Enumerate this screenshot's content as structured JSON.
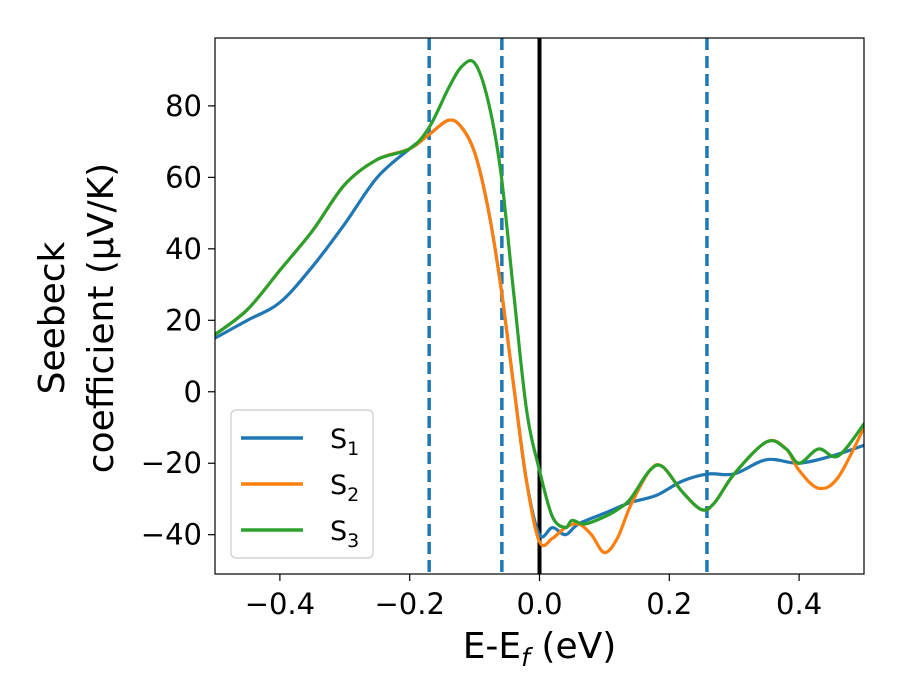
{
  "chart_data": {
    "type": "line",
    "title": "",
    "xlabel": {
      "main": "E-E",
      "sub": "f",
      "unit": " (eV)"
    },
    "ylabel": {
      "line1": "Seebeck",
      "line2": "coefficient  (μV/K)"
    },
    "xlim": [
      -0.5,
      0.5
    ],
    "ylim": [
      -51,
      99
    ],
    "x_ticks": [
      -0.4,
      -0.2,
      0.0,
      0.2,
      0.4
    ],
    "x_tick_labels": [
      "−0.4",
      "−0.2",
      "0.0",
      "0.2",
      "0.4"
    ],
    "y_ticks": [
      -40,
      -20,
      0,
      20,
      40,
      60,
      80
    ],
    "y_tick_labels": [
      "−40",
      "−20",
      "0",
      "20",
      "40",
      "60",
      "80"
    ],
    "grid": false,
    "legend_position": "lower-left",
    "vlines": [
      {
        "x": -0.17,
        "style": "dashed",
        "color": "#1f77b4"
      },
      {
        "x": -0.058,
        "style": "dashed",
        "color": "#1f77b4"
      },
      {
        "x": 0.0,
        "style": "solid",
        "color": "#000000"
      },
      {
        "x": 0.258,
        "style": "dashed",
        "color": "#1f77b4"
      }
    ],
    "series": [
      {
        "name": "S",
        "sub": "1",
        "color": "#1f77b4",
        "points": [
          [
            -0.5,
            15
          ],
          [
            -0.45,
            20
          ],
          [
            -0.4,
            25
          ],
          [
            -0.35,
            35
          ],
          [
            -0.3,
            47
          ],
          [
            -0.25,
            60
          ],
          [
            -0.2,
            68
          ],
          [
            -0.17,
            72
          ],
          [
            -0.14,
            76
          ],
          [
            -0.12,
            74
          ],
          [
            -0.1,
            67
          ],
          [
            -0.08,
            52
          ],
          [
            -0.06,
            30
          ],
          [
            -0.04,
            2
          ],
          [
            -0.02,
            -25
          ],
          [
            0.0,
            -40
          ],
          [
            0.02,
            -38
          ],
          [
            0.04,
            -40
          ],
          [
            0.06,
            -37
          ],
          [
            0.1,
            -34
          ],
          [
            0.14,
            -31
          ],
          [
            0.18,
            -29
          ],
          [
            0.22,
            -25
          ],
          [
            0.26,
            -23
          ],
          [
            0.3,
            -23
          ],
          [
            0.35,
            -19
          ],
          [
            0.4,
            -20
          ],
          [
            0.45,
            -18
          ],
          [
            0.5,
            -15
          ]
        ]
      },
      {
        "name": "S",
        "sub": "2",
        "color": "#ff7f0e",
        "points": [
          [
            -0.5,
            16
          ],
          [
            -0.45,
            23
          ],
          [
            -0.4,
            34
          ],
          [
            -0.35,
            45
          ],
          [
            -0.3,
            58
          ],
          [
            -0.25,
            65
          ],
          [
            -0.2,
            68
          ],
          [
            -0.17,
            72
          ],
          [
            -0.14,
            76
          ],
          [
            -0.12,
            74
          ],
          [
            -0.1,
            67
          ],
          [
            -0.08,
            52
          ],
          [
            -0.06,
            30
          ],
          [
            -0.04,
            2
          ],
          [
            -0.02,
            -25
          ],
          [
            0.0,
            -42
          ],
          [
            0.02,
            -41
          ],
          [
            0.04,
            -38
          ],
          [
            0.06,
            -37
          ],
          [
            0.08,
            -40
          ],
          [
            0.1,
            -45
          ],
          [
            0.12,
            -41
          ],
          [
            0.14,
            -32
          ],
          [
            0.17,
            -22
          ],
          [
            0.19,
            -21
          ],
          [
            0.22,
            -28
          ],
          [
            0.25,
            -33
          ],
          [
            0.27,
            -31
          ],
          [
            0.3,
            -23
          ],
          [
            0.35,
            -14
          ],
          [
            0.38,
            -16
          ],
          [
            0.4,
            -22
          ],
          [
            0.43,
            -27
          ],
          [
            0.46,
            -24
          ],
          [
            0.5,
            -10
          ]
        ]
      },
      {
        "name": "S",
        "sub": "3",
        "color": "#2ca02c",
        "points": [
          [
            -0.5,
            16
          ],
          [
            -0.45,
            23
          ],
          [
            -0.4,
            34
          ],
          [
            -0.35,
            45
          ],
          [
            -0.3,
            58
          ],
          [
            -0.25,
            65
          ],
          [
            -0.2,
            68
          ],
          [
            -0.17,
            74
          ],
          [
            -0.14,
            85
          ],
          [
            -0.12,
            91
          ],
          [
            -0.1,
            92
          ],
          [
            -0.08,
            82
          ],
          [
            -0.06,
            62
          ],
          [
            -0.04,
            28
          ],
          [
            -0.02,
            -5
          ],
          [
            0.0,
            -22
          ],
          [
            0.02,
            -35
          ],
          [
            0.04,
            -38
          ],
          [
            0.05,
            -36
          ],
          [
            0.07,
            -37
          ],
          [
            0.1,
            -35
          ],
          [
            0.12,
            -33
          ],
          [
            0.14,
            -30
          ],
          [
            0.17,
            -22
          ],
          [
            0.19,
            -21
          ],
          [
            0.22,
            -28
          ],
          [
            0.25,
            -33
          ],
          [
            0.27,
            -31
          ],
          [
            0.3,
            -23
          ],
          [
            0.35,
            -14
          ],
          [
            0.38,
            -16
          ],
          [
            0.4,
            -20
          ],
          [
            0.43,
            -16
          ],
          [
            0.46,
            -18
          ],
          [
            0.5,
            -9
          ]
        ]
      }
    ]
  }
}
